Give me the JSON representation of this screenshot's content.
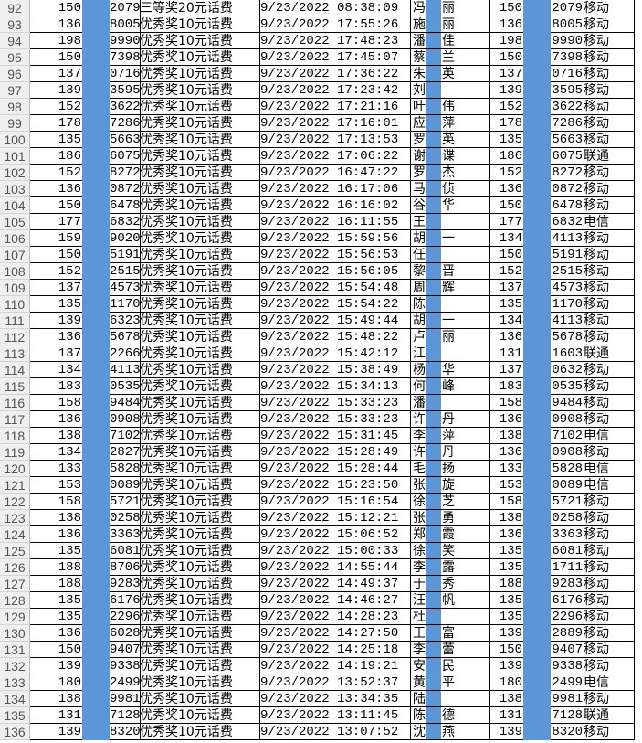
{
  "colors": {
    "redaction": "#5b96d6",
    "grid": "#000000",
    "row_header_bg": "#efefef"
  },
  "rows": [
    [
      "92",
      "150",
      "2079",
      "三等奖20元话费",
      "9/23/2022 08:38:09",
      "冯",
      "丽",
      "150",
      "2079",
      "移动"
    ],
    [
      "93",
      "136",
      "8005",
      "优秀奖10元话费",
      "9/23/2022 17:55:26",
      "施",
      "丽",
      "136",
      "8005",
      "移动"
    ],
    [
      "94",
      "198",
      "9990",
      "优秀奖10元话费",
      "9/23/2022 17:48:23",
      "潘",
      "佳",
      "198",
      "9990",
      "移动"
    ],
    [
      "95",
      "150",
      "7398",
      "优秀奖10元话费",
      "9/23/2022 17:45:07",
      "蔡",
      "兰",
      "150",
      "7398",
      "移动"
    ],
    [
      "96",
      "137",
      "0716",
      "优秀奖10元话费",
      "9/23/2022 17:36:22",
      "朱",
      "英",
      "137",
      "0716",
      "移动"
    ],
    [
      "97",
      "139",
      "3595",
      "优秀奖10元话费",
      "9/23/2022 17:23:42",
      "刘",
      "",
      "139",
      "3595",
      "移动"
    ],
    [
      "98",
      "152",
      "3622",
      "优秀奖10元话费",
      "9/23/2022 17:21:16",
      "叶",
      "伟",
      "152",
      "3622",
      "移动"
    ],
    [
      "99",
      "178",
      "7286",
      "优秀奖10元话费",
      "9/23/2022 17:16:01",
      "应",
      "萍",
      "178",
      "7286",
      "移动"
    ],
    [
      "100",
      "135",
      "5663",
      "优秀奖10元话费",
      "9/23/2022 17:13:53",
      "罗",
      "英",
      "135",
      "5663",
      "移动"
    ],
    [
      "101",
      "186",
      "6075",
      "优秀奖10元话费",
      "9/23/2022 17:06:22",
      "谢",
      "谍",
      "186",
      "6075",
      "联通"
    ],
    [
      "102",
      "152",
      "8272",
      "优秀奖10元话费",
      "9/23/2022 16:47:22",
      "罗",
      "杰",
      "152",
      "8272",
      "移动"
    ],
    [
      "103",
      "136",
      "0872",
      "优秀奖10元话费",
      "9/23/2022 16:17:06",
      "马",
      "侦",
      "136",
      "0872",
      "移动"
    ],
    [
      "104",
      "150",
      "6478",
      "优秀奖10元话费",
      "9/23/2022 16:16:02",
      "谷",
      "华",
      "150",
      "6478",
      "移动"
    ],
    [
      "105",
      "177",
      "6832",
      "优秀奖10元话费",
      "9/23/2022 16:11:55",
      "王",
      "",
      "177",
      "6832",
      "电信"
    ],
    [
      "106",
      "159",
      "9020",
      "优秀奖10元话费",
      "9/23/2022 15:59:56",
      "胡",
      "一",
      "134",
      "4113",
      "移动"
    ],
    [
      "107",
      "150",
      "5191",
      "优秀奖10元话费",
      "9/23/2022 15:56:53",
      "任",
      "",
      "150",
      "5191",
      "移动"
    ],
    [
      "108",
      "152",
      "2515",
      "优秀奖10元话费",
      "9/23/2022 15:56:05",
      "黎",
      "晋",
      "152",
      "2515",
      "移动"
    ],
    [
      "109",
      "137",
      "4573",
      "优秀奖10元话费",
      "9/23/2022 15:54:48",
      "周",
      "辉",
      "137",
      "4573",
      "移动"
    ],
    [
      "110",
      "135",
      "1170",
      "优秀奖10元话费",
      "9/23/2022 15:54:22",
      "陈",
      "",
      "135",
      "1170",
      "移动"
    ],
    [
      "111",
      "139",
      "6323",
      "优秀奖10元话费",
      "9/23/2022 15:49:44",
      "胡",
      "一",
      "134",
      "4113",
      "移动"
    ],
    [
      "112",
      "136",
      "5678",
      "优秀奖10元话费",
      "9/23/2022 15:48:22",
      "卢",
      "丽",
      "136",
      "5678",
      "移动"
    ],
    [
      "113",
      "137",
      "2266",
      "优秀奖10元话费",
      "9/23/2022 15:42:12",
      "江",
      "",
      "131",
      "1603",
      "联通"
    ],
    [
      "114",
      "134",
      "4113",
      "优秀奖10元话费",
      "9/23/2022 15:38:49",
      "杨",
      "华",
      "137",
      "0632",
      "移动"
    ],
    [
      "115",
      "183",
      "0535",
      "优秀奖10元话费",
      "9/23/2022 15:34:13",
      "何",
      "峰",
      "183",
      "0535",
      "移动"
    ],
    [
      "116",
      "158",
      "9484",
      "优秀奖10元话费",
      "9/23/2022 15:33:23",
      "潘",
      "",
      "158",
      "9484",
      "移动"
    ],
    [
      "117",
      "136",
      "0908",
      "优秀奖10元话费",
      "9/23/2022 15:33:23",
      "许",
      "丹",
      "136",
      "0908",
      "移动"
    ],
    [
      "118",
      "138",
      "7102",
      "优秀奖10元话费",
      "9/23/2022 15:31:45",
      "李",
      "萍",
      "138",
      "7102",
      "电信"
    ],
    [
      "119",
      "134",
      "2827",
      "优秀奖10元话费",
      "9/23/2022 15:28:49",
      "许",
      "丹",
      "136",
      "0908",
      "移动"
    ],
    [
      "120",
      "133",
      "5828",
      "优秀奖10元话费",
      "9/23/2022 15:28:44",
      "毛",
      "扬",
      "133",
      "5828",
      "电信"
    ],
    [
      "121",
      "153",
      "0089",
      "优秀奖10元话费",
      "9/23/2022 15:23:50",
      "张",
      "旋",
      "153",
      "0089",
      "电信"
    ],
    [
      "122",
      "158",
      "5721",
      "优秀奖10元话费",
      "9/23/2022 15:16:54",
      "徐",
      "芝",
      "158",
      "5721",
      "移动"
    ],
    [
      "123",
      "138",
      "0258",
      "优秀奖10元话费",
      "9/23/2022 15:12:21",
      "张",
      "勇",
      "138",
      "0258",
      "移动"
    ],
    [
      "124",
      "136",
      "3363",
      "优秀奖10元话费",
      "9/23/2022 15:06:52",
      "郑",
      "霞",
      "136",
      "3363",
      "移动"
    ],
    [
      "125",
      "135",
      "6081",
      "优秀奖10元话费",
      "9/23/2022 15:00:33",
      "徐",
      "笑",
      "135",
      "6081",
      "移动"
    ],
    [
      "126",
      "188",
      "8706",
      "优秀奖10元话费",
      "9/23/2022 14:55:44",
      "李",
      "露",
      "135",
      "1711",
      "移动"
    ],
    [
      "127",
      "188",
      "9283",
      "优秀奖10元话费",
      "9/23/2022 14:49:37",
      "于",
      "秀",
      "188",
      "9283",
      "移动"
    ],
    [
      "128",
      "135",
      "6176",
      "优秀奖10元话费",
      "9/23/2022 14:46:27",
      "汪",
      "帆",
      "135",
      "6176",
      "移动"
    ],
    [
      "129",
      "135",
      "2296",
      "优秀奖10元话费",
      "9/23/2022 14:28:23",
      "杜",
      "",
      "135",
      "2296",
      "移动"
    ],
    [
      "130",
      "136",
      "6028",
      "优秀奖10元话费",
      "9/23/2022 14:27:50",
      "王",
      "富",
      "139",
      "2889",
      "移动"
    ],
    [
      "131",
      "150",
      "9407",
      "优秀奖10元话费",
      "9/23/2022 14:25:18",
      "李",
      "蕾",
      "150",
      "9407",
      "移动"
    ],
    [
      "132",
      "139",
      "9338",
      "优秀奖10元话费",
      "9/23/2022 14:19:21",
      "安",
      "民",
      "139",
      "9338",
      "移动"
    ],
    [
      "133",
      "180",
      "2499",
      "优秀奖10元话费",
      "9/23/2022 13:52:37",
      "黄",
      "平",
      "180",
      "2499",
      "电信"
    ],
    [
      "134",
      "138",
      "9981",
      "优秀奖10元话费",
      "9/23/2022 13:34:35",
      "陆",
      "",
      "138",
      "9981",
      "移动"
    ],
    [
      "135",
      "131",
      "7128",
      "优秀奖10元话费",
      "9/23/2022 13:11:45",
      "陈",
      "德",
      "131",
      "7128",
      "联通"
    ],
    [
      "136",
      "139",
      "8320",
      "优秀奖10元话费",
      "9/23/2022 13:07:52",
      "沈",
      "燕",
      "139",
      "8320",
      "移动"
    ]
  ]
}
